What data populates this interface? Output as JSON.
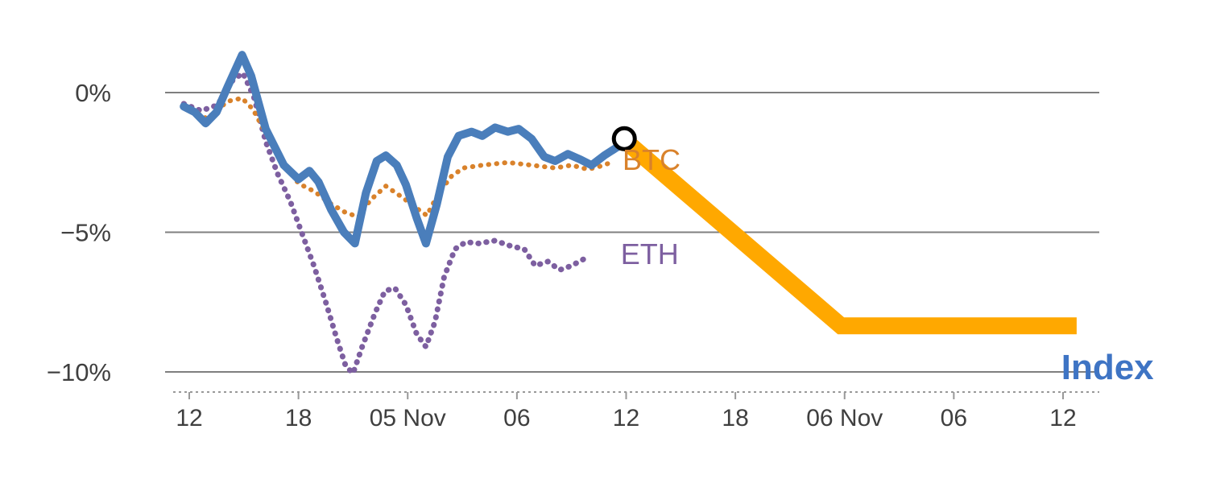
{
  "chart_data": {
    "type": "line",
    "title": "",
    "description": "Percentage change over time: BTC (orange dotted), ETH (purple dotted), Index (blue solid) with highlighted orange projection segment ending flat near -8.4%",
    "colors": {
      "grid": "#7f7f7f",
      "axis": "#999999",
      "tick_text": "#3f3f3f",
      "background": "#ffffff"
    },
    "x_ticks": {
      "positions": [
        0,
        6,
        12,
        18,
        24,
        30,
        36,
        42,
        48
      ],
      "labels": [
        "12",
        "18",
        "05 Nov",
        "06",
        "12",
        "18",
        "06 Nov",
        "06",
        "12"
      ]
    },
    "y_ticks": {
      "positions": [
        0,
        -5,
        -10
      ],
      "labels": [
        "0%",
        "−5%",
        "−10%"
      ]
    },
    "xlim": [
      -1.2,
      49.6
    ],
    "ylim": [
      -11.5,
      2.2
    ],
    "grid": "horizontal",
    "legend_position": "inline-annotations",
    "series": [
      {
        "name": "ETH",
        "color": "#7d5fa0",
        "style": "dotted",
        "width": 7,
        "points": [
          [
            -0.3,
            -0.4
          ],
          [
            0.65,
            -0.65
          ],
          [
            1.55,
            -0.45
          ],
          [
            2.4,
            0.45
          ],
          [
            2.95,
            0.7
          ],
          [
            3.55,
            -0.15
          ],
          [
            4.2,
            -1.75
          ],
          [
            4.85,
            -2.9
          ],
          [
            5.55,
            -3.9
          ],
          [
            6.2,
            -5.05
          ],
          [
            6.85,
            -6.2
          ],
          [
            7.5,
            -7.5
          ],
          [
            8.1,
            -8.8
          ],
          [
            8.6,
            -9.8
          ],
          [
            9.0,
            -10.05
          ],
          [
            9.5,
            -9.1
          ],
          [
            10.2,
            -7.9
          ],
          [
            10.75,
            -7.1
          ],
          [
            11.3,
            -7.0
          ],
          [
            11.9,
            -7.6
          ],
          [
            12.5,
            -8.65
          ],
          [
            13.0,
            -9.1
          ],
          [
            13.5,
            -8.2
          ],
          [
            14.0,
            -6.6
          ],
          [
            14.6,
            -5.6
          ],
          [
            15.2,
            -5.35
          ],
          [
            15.9,
            -5.4
          ],
          [
            16.8,
            -5.3
          ],
          [
            17.7,
            -5.5
          ],
          [
            18.4,
            -5.6
          ],
          [
            19.0,
            -6.2
          ],
          [
            19.7,
            -6.05
          ],
          [
            20.35,
            -6.35
          ],
          [
            21.0,
            -6.2
          ],
          [
            21.7,
            -5.95
          ]
        ]
      },
      {
        "name": "BTC",
        "color": "#d9822b",
        "style": "dotted",
        "width": 6,
        "points": [
          [
            -0.3,
            -0.5
          ],
          [
            0.4,
            -0.7
          ],
          [
            1.0,
            -0.95
          ],
          [
            1.5,
            -0.6
          ],
          [
            2.2,
            -0.3
          ],
          [
            2.9,
            -0.2
          ],
          [
            3.5,
            -0.6
          ],
          [
            4.2,
            -1.45
          ],
          [
            5.1,
            -2.45
          ],
          [
            6.0,
            -3.25
          ],
          [
            6.9,
            -3.55
          ],
          [
            7.7,
            -3.95
          ],
          [
            8.6,
            -4.3
          ],
          [
            9.3,
            -4.45
          ],
          [
            9.95,
            -3.85
          ],
          [
            10.8,
            -3.35
          ],
          [
            11.7,
            -3.75
          ],
          [
            12.4,
            -4.1
          ],
          [
            13.05,
            -4.4
          ],
          [
            13.7,
            -3.6
          ],
          [
            14.4,
            -3.0
          ],
          [
            15.05,
            -2.7
          ],
          [
            16.1,
            -2.6
          ],
          [
            17.5,
            -2.5
          ],
          [
            18.8,
            -2.6
          ],
          [
            20.1,
            -2.7
          ],
          [
            21.0,
            -2.6
          ],
          [
            21.9,
            -2.75
          ],
          [
            22.8,
            -2.6
          ],
          [
            23.3,
            -2.45
          ]
        ]
      },
      {
        "name": "Index",
        "color": "#4a7ebb",
        "style": "solid",
        "width": 10,
        "points": [
          [
            -0.3,
            -0.5
          ],
          [
            0.3,
            -0.7
          ],
          [
            0.9,
            -1.1
          ],
          [
            1.5,
            -0.7
          ],
          [
            2.1,
            0.2
          ],
          [
            2.9,
            1.35
          ],
          [
            3.4,
            0.6
          ],
          [
            4.2,
            -1.3
          ],
          [
            5.2,
            -2.6
          ],
          [
            6.0,
            -3.1
          ],
          [
            6.6,
            -2.8
          ],
          [
            7.1,
            -3.2
          ],
          [
            7.8,
            -4.2
          ],
          [
            8.5,
            -5.0
          ],
          [
            9.1,
            -5.4
          ],
          [
            9.7,
            -3.6
          ],
          [
            10.3,
            -2.45
          ],
          [
            10.8,
            -2.25
          ],
          [
            11.4,
            -2.6
          ],
          [
            11.9,
            -3.3
          ],
          [
            12.5,
            -4.5
          ],
          [
            13.0,
            -5.4
          ],
          [
            13.6,
            -4.0
          ],
          [
            14.2,
            -2.3
          ],
          [
            14.8,
            -1.55
          ],
          [
            15.5,
            -1.4
          ],
          [
            16.1,
            -1.55
          ],
          [
            16.8,
            -1.25
          ],
          [
            17.5,
            -1.4
          ],
          [
            18.1,
            -1.3
          ],
          [
            18.8,
            -1.65
          ],
          [
            19.5,
            -2.3
          ],
          [
            20.1,
            -2.45
          ],
          [
            20.8,
            -2.2
          ],
          [
            21.5,
            -2.4
          ],
          [
            22.1,
            -2.6
          ],
          [
            22.8,
            -2.25
          ],
          [
            23.4,
            -2.0
          ],
          [
            23.9,
            -1.8
          ]
        ]
      },
      {
        "name": "Index projection",
        "color": "#ffa800",
        "style": "solid",
        "width": 21,
        "points": [
          [
            23.9,
            -1.7
          ],
          [
            35.8,
            -8.35
          ],
          [
            48.75,
            -8.35
          ]
        ]
      }
    ],
    "marker": {
      "x": 23.9,
      "y": -1.65,
      "shape": "open-circle",
      "color": "#000000",
      "radius": 13,
      "stroke_width": 5
    },
    "annotations": [
      {
        "el": "btc-series-label",
        "text": "BTC",
        "x": 23.8,
        "y": -2.95,
        "color": "#d9822b",
        "size": 36,
        "weight": "normal"
      },
      {
        "el": "eth-series-label",
        "text": "ETH",
        "x": 23.7,
        "y": -6.3,
        "color": "#7d5fa0",
        "size": 36,
        "weight": "normal"
      },
      {
        "el": "index-series-label",
        "text": "Index",
        "x": 47.9,
        "y": -10.5,
        "color": "#3e74c4",
        "size": 44,
        "weight": "bold"
      }
    ]
  }
}
